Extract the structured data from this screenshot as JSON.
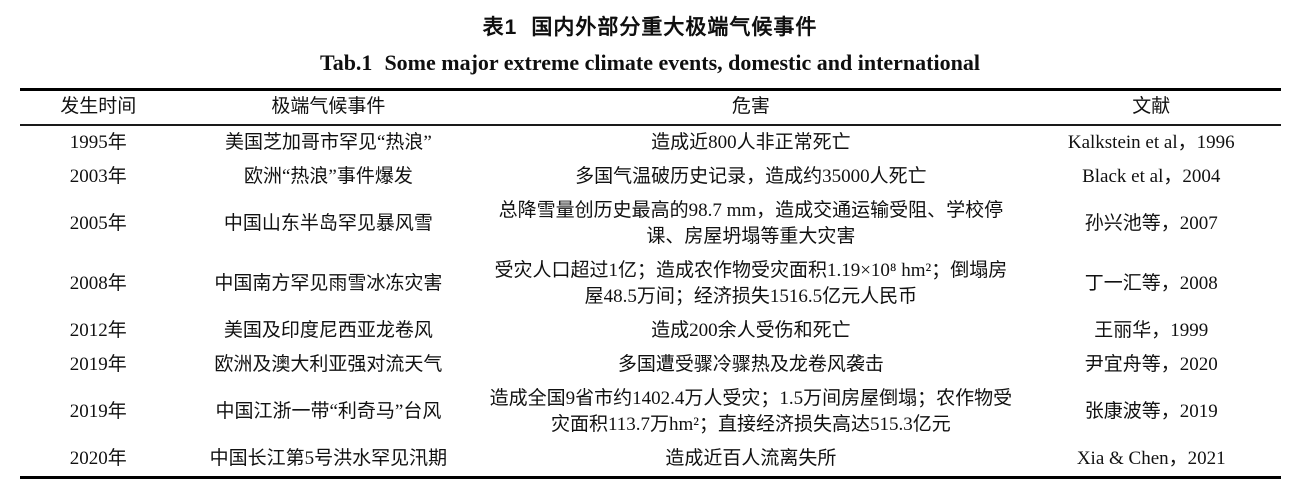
{
  "caption": {
    "cn_label": "表1",
    "cn_text": "国内外部分重大极端气候事件",
    "en_label": "Tab.1",
    "en_text": "Some major extreme climate events, domestic and international"
  },
  "table": {
    "headers": [
      "发生时间",
      "极端气候事件",
      "危害",
      "文献"
    ],
    "rows": [
      {
        "time": "1995年",
        "event": "美国芝加哥市罕见“热浪”",
        "harm": "造成近800人非正常死亡",
        "ref": "Kalkstein et al，1996"
      },
      {
        "time": "2003年",
        "event": "欧洲“热浪”事件爆发",
        "harm": "多国气温破历史记录，造成约35000人死亡",
        "ref": "Black et al，2004"
      },
      {
        "time": "2005年",
        "event": "中国山东半岛罕见暴风雪",
        "harm": "总降雪量创历史最高的98.7 mm，造成交通运输受阻、学校停课、房屋坍塌等重大灾害",
        "ref": "孙兴池等，2007"
      },
      {
        "time": "2008年",
        "event": "中国南方罕见雨雪冰冻灾害",
        "harm": "受灾人口超过1亿；造成农作物受灾面积1.19×10⁸ hm²；倒塌房屋48.5万间；经济损失1516.5亿元人民币",
        "ref": "丁一汇等，2008"
      },
      {
        "time": "2012年",
        "event": "美国及印度尼西亚龙卷风",
        "harm": "造成200余人受伤和死亡",
        "ref": "王丽华，1999"
      },
      {
        "time": "2019年",
        "event": "欧洲及澳大利亚强对流天气",
        "harm": "多国遭受骤冷骤热及龙卷风袭击",
        "ref": "尹宜舟等，2020"
      },
      {
        "time": "2019年",
        "event": "中国江浙一带“利奇马”台风",
        "harm": "造成全国9省市约1402.4万人受灾；1.5万间房屋倒塌；农作物受灾面积113.7万hm²；直接经济损失高达515.3亿元",
        "ref": "张康波等，2019"
      },
      {
        "time": "2020年",
        "event": "中国长江第5号洪水罕见汛期",
        "harm": "造成近百人流离失所",
        "ref": "Xia & Chen，2021"
      }
    ]
  },
  "colors": {
    "text": "#111111",
    "rule": "#000000",
    "background": "#ffffff"
  }
}
